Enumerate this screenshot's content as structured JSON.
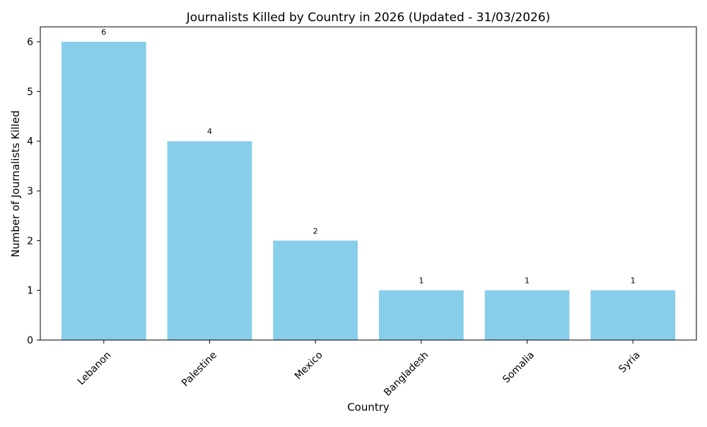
{
  "chart_data": {
    "type": "bar",
    "title": "Journalists Killed by Country in 2026 (Updated - 31/03/2026)",
    "xlabel": "Country",
    "ylabel": "Number of Journalists Killed",
    "categories": [
      "Lebanon",
      "Palestine",
      "Mexico",
      "Bangladesh",
      "Somalia",
      "Syria"
    ],
    "values": [
      6,
      4,
      2,
      1,
      1,
      1
    ],
    "data_labels": [
      "6",
      "4",
      "2",
      "1",
      "1",
      "1"
    ],
    "ylim": [
      0,
      6.3
    ],
    "yticks": [
      0,
      1,
      2,
      3,
      4,
      5,
      6
    ],
    "ytick_labels": [
      "0",
      "1",
      "2",
      "3",
      "4",
      "5",
      "6"
    ],
    "bar_color": "#87CEEB",
    "grid": false,
    "legend": "none"
  }
}
